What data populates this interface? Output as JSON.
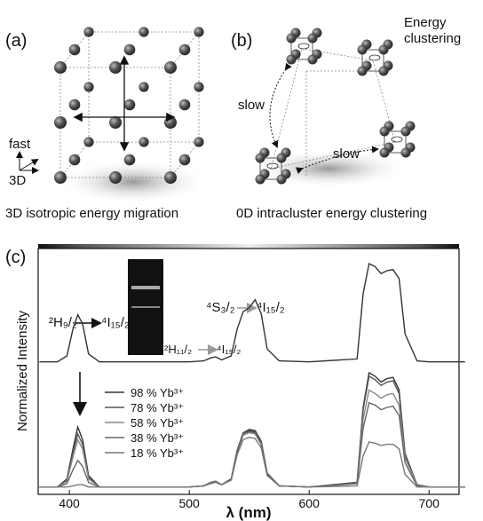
{
  "panels": {
    "a": {
      "label": "(a)",
      "fast": "fast",
      "dim": "3D",
      "caption": "3D isotropic energy migration"
    },
    "b": {
      "label": "(b)",
      "slow_left": "slow",
      "slow_bottom": "slow",
      "energy": "Energy",
      "clustering": "clustering",
      "caption": "0D intracluster energy clustering"
    }
  },
  "chart_data": {
    "type": "line",
    "panel_label": "(c)",
    "xlabel": "λ (nm)",
    "ylabel": "Normalized Intensity",
    "xlim": [
      374,
      725
    ],
    "xticks": [
      400,
      500,
      600,
      700
    ],
    "annotations": {
      "blue_upper": "²H₉/₂",
      "blue_lower": "⁴I₁₅/₂",
      "h11": "²H₁₁/₂",
      "h11_lower": "⁴I₁₅/₂",
      "s32": "⁴S₃/₂",
      "s32_lower": "⁴I₁₅/₂"
    },
    "x": [
      375,
      390,
      398,
      403,
      407,
      411,
      416,
      425,
      450,
      500,
      512,
      518,
      522,
      527,
      535,
      540,
      545,
      550,
      555,
      560,
      565,
      575,
      600,
      640,
      645,
      650,
      655,
      660,
      665,
      670,
      675,
      680,
      690,
      700,
      730
    ],
    "upper_spectrum": {
      "color": "#333333",
      "values": [
        0.02,
        0.02,
        0.08,
        0.35,
        0.49,
        0.4,
        0.1,
        0.02,
        0.02,
        0.02,
        0.03,
        0.06,
        0.07,
        0.04,
        0.08,
        0.35,
        0.52,
        0.56,
        0.64,
        0.5,
        0.15,
        0.03,
        0.02,
        0.05,
        0.7,
        1.0,
        0.97,
        0.9,
        0.93,
        0.94,
        0.85,
        0.3,
        0.03,
        0.02,
        0.02
      ]
    },
    "series": [
      {
        "name": "98 % Yb³⁺",
        "color": "#333333",
        "values": [
          0.01,
          0.01,
          0.08,
          0.34,
          0.53,
          0.42,
          0.11,
          0.01,
          0.01,
          0.01,
          0.02,
          0.05,
          0.06,
          0.03,
          0.08,
          0.33,
          0.48,
          0.5,
          0.49,
          0.4,
          0.13,
          0.02,
          0.01,
          0.05,
          0.7,
          1.0,
          0.97,
          0.92,
          0.95,
          0.96,
          0.85,
          0.3,
          0.03,
          0.01,
          0.01
        ]
      },
      {
        "name": "78 % Yb³⁺",
        "color": "#555555",
        "values": [
          0.01,
          0.01,
          0.07,
          0.31,
          0.47,
          0.38,
          0.09,
          0.01,
          0.01,
          0.01,
          0.02,
          0.05,
          0.06,
          0.03,
          0.08,
          0.33,
          0.48,
          0.51,
          0.5,
          0.41,
          0.13,
          0.02,
          0.01,
          0.05,
          0.68,
          0.97,
          0.94,
          0.89,
          0.92,
          0.93,
          0.82,
          0.29,
          0.03,
          0.01,
          0.01
        ]
      },
      {
        "name": "58 % Yb³⁺",
        "color": "#888888",
        "values": [
          0.01,
          0.01,
          0.06,
          0.27,
          0.42,
          0.34,
          0.08,
          0.01,
          0.01,
          0.01,
          0.02,
          0.05,
          0.06,
          0.03,
          0.07,
          0.31,
          0.46,
          0.48,
          0.47,
          0.38,
          0.12,
          0.02,
          0.01,
          0.04,
          0.6,
          0.85,
          0.82,
          0.78,
          0.81,
          0.82,
          0.72,
          0.26,
          0.03,
          0.01,
          0.01
        ]
      },
      {
        "name": "38 % Yb³⁺",
        "color": "#666666",
        "values": [
          0.01,
          0.01,
          0.04,
          0.16,
          0.24,
          0.19,
          0.05,
          0.01,
          0.01,
          0.01,
          0.02,
          0.05,
          0.06,
          0.03,
          0.07,
          0.32,
          0.47,
          0.49,
          0.48,
          0.39,
          0.12,
          0.02,
          0.01,
          0.04,
          0.52,
          0.74,
          0.72,
          0.68,
          0.7,
          0.71,
          0.63,
          0.22,
          0.02,
          0.01,
          0.01
        ]
      },
      {
        "name": "18 % Yb³⁺",
        "color": "#777777",
        "values": [
          0.01,
          0.01,
          0.01,
          0.02,
          0.03,
          0.03,
          0.01,
          0.01,
          0.01,
          0.01,
          0.02,
          0.04,
          0.05,
          0.03,
          0.07,
          0.29,
          0.42,
          0.44,
          0.43,
          0.35,
          0.11,
          0.02,
          0.01,
          0.02,
          0.28,
          0.4,
          0.39,
          0.37,
          0.38,
          0.38,
          0.34,
          0.12,
          0.01,
          0.01,
          0.01
        ]
      }
    ]
  }
}
